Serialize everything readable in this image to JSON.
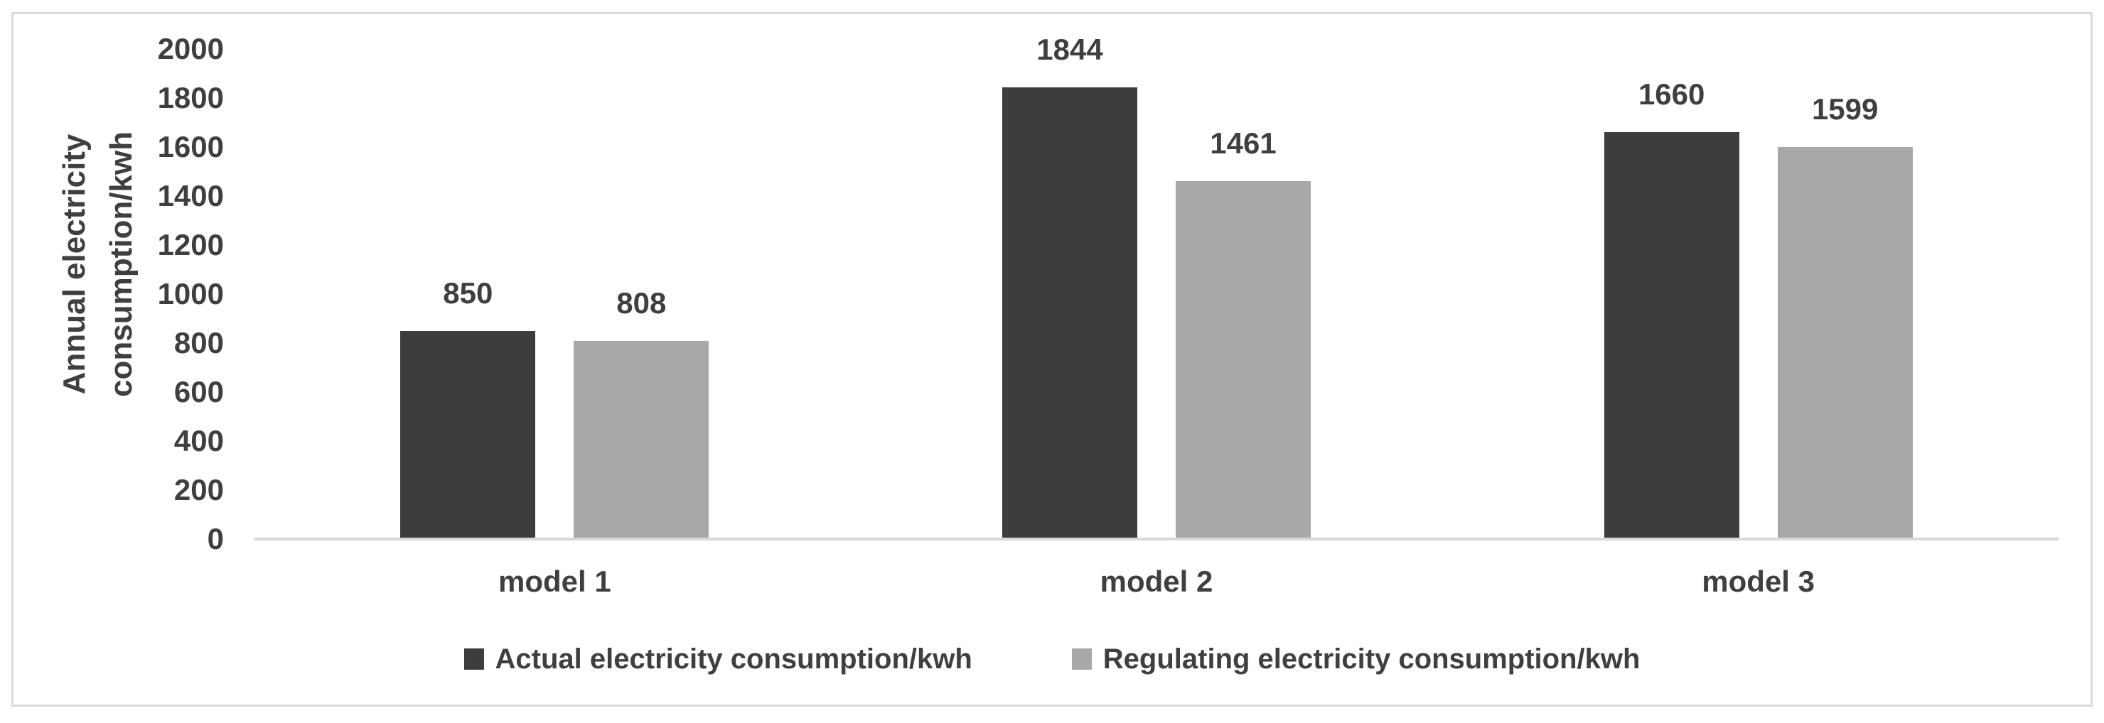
{
  "chart_data": {
    "type": "bar",
    "categories": [
      "model 1",
      "model 2",
      "model 3"
    ],
    "series": [
      {
        "name": "Actual electricity consumption/kwh",
        "color": "#3d3d3d",
        "values": [
          850,
          1844,
          1660
        ]
      },
      {
        "name": "Regulating electricity consumption/kwh",
        "color": "#a8a8a8",
        "values": [
          808,
          1461,
          1599
        ]
      }
    ],
    "title": "",
    "xlabel": "",
    "ylabel_line1": "Annual electricity",
    "ylabel_line2": "consumption/kwh",
    "y_ticks": [
      0,
      200,
      400,
      600,
      800,
      1000,
      1200,
      1400,
      1600,
      1800,
      2000
    ],
    "ylim": [
      0,
      2000
    ],
    "grid": false,
    "data_labels": true,
    "legend_position": "bottom"
  },
  "colors": {
    "frame_border": "#d9d9d9",
    "axis_line": "#d9d9d9",
    "text": "#3f3f3f",
    "background": "#ffffff"
  }
}
